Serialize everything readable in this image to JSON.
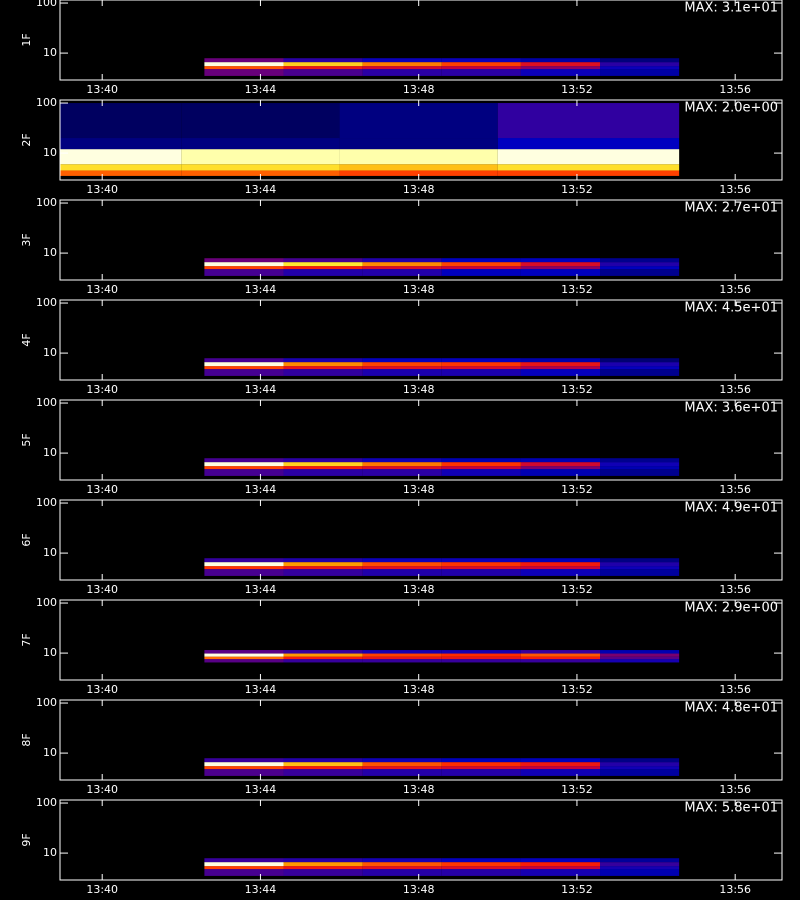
{
  "chart_data": [
    {
      "type": "heatmap",
      "ylabel": "1F",
      "max_label": "MAX: 3.1e+01",
      "max": 31,
      "log_y": true,
      "xlim": [
        "13:38:56",
        "13:57:11"
      ],
      "xticks": [
        "13:40",
        "13:44",
        "13:48",
        "13:52",
        "13:56"
      ],
      "ylim": [
        2.9,
        115
      ],
      "yticks": [
        10,
        100
      ],
      "x_bins": [
        "13:42:35",
        "13:44:35",
        "13:46:35",
        "13:48:35",
        "13:50:35",
        "13:52:35",
        "13:54:35"
      ],
      "y_bins": [
        3.5,
        4.8,
        5.5,
        6.6,
        7.9
      ],
      "values": [
        [
          8,
          7,
          6,
          6,
          5,
          4
        ],
        [
          18,
          14,
          12,
          11,
          9,
          5
        ],
        [
          31,
          24,
          20,
          17,
          13,
          6
        ],
        [
          8,
          6,
          5,
          5,
          4,
          3
        ]
      ]
    },
    {
      "type": "heatmap",
      "ylabel": "2F",
      "max_label": "MAX: 2.0e+00",
      "max": 2.0,
      "log_y": true,
      "xlim": [
        "13:38:56",
        "13:57:11"
      ],
      "xticks": [
        "13:40",
        "13:44",
        "13:48",
        "13:52",
        "13:56"
      ],
      "ylim": [
        2.9,
        115
      ],
      "yticks": [
        10,
        100
      ],
      "x_bins": [
        "13:38:56",
        "13:42:00",
        "13:46:00",
        "13:50:00",
        "13:54:35"
      ],
      "y_bins": [
        3.5,
        4.5,
        6,
        12,
        20,
        100
      ],
      "values": [
        [
          1.2,
          1.2,
          1.1,
          1.1
        ],
        [
          1.6,
          1.6,
          1.5,
          1.6
        ],
        [
          2.0,
          1.9,
          1.9,
          2.0
        ],
        [
          0.2,
          0.2,
          0.2,
          0.3
        ],
        [
          0.15,
          0.15,
          0.2,
          0.4
        ]
      ]
    },
    {
      "type": "heatmap",
      "ylabel": "3F",
      "max_label": "MAX: 2.7e+01",
      "max": 27,
      "log_y": true,
      "xlim": [
        "13:38:56",
        "13:57:11"
      ],
      "xticks": [
        "13:40",
        "13:44",
        "13:48",
        "13:52",
        "13:56"
      ],
      "ylim": [
        2.9,
        115
      ],
      "yticks": [
        10,
        100
      ],
      "x_bins": [
        "13:42:35",
        "13:44:35",
        "13:46:35",
        "13:48:35",
        "13:50:35",
        "13:52:35",
        "13:54:35"
      ],
      "y_bins": [
        3.5,
        4.8,
        5.5,
        6.6,
        7.9
      ],
      "values": [
        [
          6,
          5,
          5,
          4,
          4,
          3
        ],
        [
          15,
          13,
          11,
          10,
          8,
          4
        ],
        [
          27,
          22,
          18,
          15,
          11,
          5
        ],
        [
          7,
          6,
          5,
          4,
          4,
          3
        ]
      ]
    },
    {
      "type": "heatmap",
      "ylabel": "4F",
      "max_label": "MAX: 4.5e+01",
      "max": 45,
      "log_y": true,
      "xlim": [
        "13:38:56",
        "13:57:11"
      ],
      "xticks": [
        "13:40",
        "13:44",
        "13:48",
        "13:52",
        "13:56"
      ],
      "ylim": [
        2.9,
        115
      ],
      "yticks": [
        10,
        100
      ],
      "x_bins": [
        "13:42:35",
        "13:44:35",
        "13:46:35",
        "13:48:35",
        "13:50:35",
        "13:52:35",
        "13:54:35"
      ],
      "y_bins": [
        3.5,
        4.8,
        5.5,
        6.6,
        7.9
      ],
      "values": [
        [
          10,
          9,
          8,
          8,
          7,
          5
        ],
        [
          25,
          20,
          19,
          18,
          15,
          7
        ],
        [
          45,
          30,
          25,
          24,
          20,
          8
        ],
        [
          10,
          8,
          7,
          7,
          6,
          4
        ]
      ]
    },
    {
      "type": "heatmap",
      "ylabel": "5F",
      "max_label": "MAX: 3.6e+01",
      "max": 36,
      "log_y": true,
      "xlim": [
        "13:38:56",
        "13:57:11"
      ],
      "xticks": [
        "13:40",
        "13:44",
        "13:48",
        "13:52",
        "13:56"
      ],
      "ylim": [
        2.9,
        115
      ],
      "yticks": [
        10,
        100
      ],
      "x_bins": [
        "13:42:35",
        "13:44:35",
        "13:46:35",
        "13:48:35",
        "13:50:35",
        "13:52:35",
        "13:54:35"
      ],
      "y_bins": [
        3.5,
        4.8,
        5.5,
        6.6,
        7.9
      ],
      "values": [
        [
          8,
          7,
          7,
          6,
          5,
          4
        ],
        [
          20,
          17,
          15,
          13,
          10,
          5
        ],
        [
          36,
          28,
          23,
          19,
          14,
          6
        ],
        [
          8,
          7,
          6,
          5,
          5,
          4
        ]
      ]
    },
    {
      "type": "heatmap",
      "ylabel": "6F",
      "max_label": "MAX: 4.9e+01",
      "max": 49,
      "log_y": true,
      "xlim": [
        "13:38:56",
        "13:57:11"
      ],
      "xticks": [
        "13:40",
        "13:44",
        "13:48",
        "13:52",
        "13:56"
      ],
      "ylim": [
        2.9,
        115
      ],
      "yticks": [
        10,
        100
      ],
      "x_bins": [
        "13:42:35",
        "13:44:35",
        "13:46:35",
        "13:48:35",
        "13:50:35",
        "13:52:35",
        "13:54:35"
      ],
      "y_bins": [
        3.5,
        4.8,
        5.5,
        6.6,
        7.9
      ],
      "values": [
        [
          11,
          10,
          9,
          9,
          8,
          6
        ],
        [
          26,
          22,
          21,
          20,
          18,
          8
        ],
        [
          49,
          34,
          28,
          26,
          23,
          9
        ],
        [
          10,
          9,
          8,
          8,
          7,
          5
        ]
      ]
    },
    {
      "type": "heatmap",
      "ylabel": "7F",
      "max_label": "MAX: 2.9e+00",
      "max": 2.9,
      "log_y": true,
      "xlim": [
        "13:38:56",
        "13:57:11"
      ],
      "xticks": [
        "13:40",
        "13:44",
        "13:48",
        "13:52",
        "13:56"
      ],
      "ylim": [
        2.9,
        115
      ],
      "yticks": [
        10,
        100
      ],
      "x_bins": [
        "13:42:35",
        "13:44:35",
        "13:46:35",
        "13:48:35",
        "13:50:35",
        "13:52:35",
        "13:54:35"
      ],
      "y_bins": [
        6.5,
        7.6,
        8.5,
        9.8,
        11.5
      ],
      "values": [
        [
          0.7,
          0.6,
          0.6,
          0.6,
          0.6,
          0.5
        ],
        [
          1.8,
          1.4,
          1.3,
          1.3,
          1.4,
          0.7
        ],
        [
          2.9,
          2.0,
          1.6,
          1.5,
          1.7,
          0.8
        ],
        [
          0.7,
          0.6,
          0.5,
          0.5,
          0.6,
          0.4
        ]
      ]
    },
    {
      "type": "heatmap",
      "ylabel": "8F",
      "max_label": "MAX: 4.8e+01",
      "max": 48,
      "log_y": true,
      "xlim": [
        "13:38:56",
        "13:57:11"
      ],
      "xticks": [
        "13:40",
        "13:44",
        "13:48",
        "13:52",
        "13:56"
      ],
      "ylim": [
        2.9,
        115
      ],
      "yticks": [
        10,
        100
      ],
      "x_bins": [
        "13:42:35",
        "13:44:35",
        "13:46:35",
        "13:48:35",
        "13:50:35",
        "13:52:35",
        "13:54:35"
      ],
      "y_bins": [
        3.5,
        4.8,
        5.5,
        6.6,
        7.9
      ],
      "values": [
        [
          11,
          10,
          9,
          9,
          8,
          6
        ],
        [
          27,
          23,
          21,
          19,
          17,
          8
        ],
        [
          48,
          36,
          28,
          25,
          22,
          9
        ],
        [
          10,
          9,
          8,
          7,
          7,
          5
        ]
      ]
    },
    {
      "type": "heatmap",
      "ylabel": "9F",
      "max_label": "MAX: 5.8e+01",
      "max": 58,
      "log_y": true,
      "xlim": [
        "13:38:56",
        "13:57:11"
      ],
      "xticks": [
        "13:40",
        "13:44",
        "13:48",
        "13:52",
        "13:56"
      ],
      "ylim": [
        2.9,
        115
      ],
      "yticks": [
        10,
        100
      ],
      "x_bins": [
        "13:42:35",
        "13:44:35",
        "13:46:35",
        "13:48:35",
        "13:50:35",
        "13:52:35",
        "13:54:35"
      ],
      "y_bins": [
        3.5,
        4.8,
        5.5,
        6.6,
        7.9
      ],
      "values": [
        [
          13,
          12,
          11,
          11,
          10,
          8
        ],
        [
          32,
          27,
          25,
          24,
          21,
          10
        ],
        [
          58,
          40,
          34,
          31,
          28,
          12
        ],
        [
          12,
          11,
          10,
          9,
          9,
          7
        ]
      ]
    }
  ]
}
